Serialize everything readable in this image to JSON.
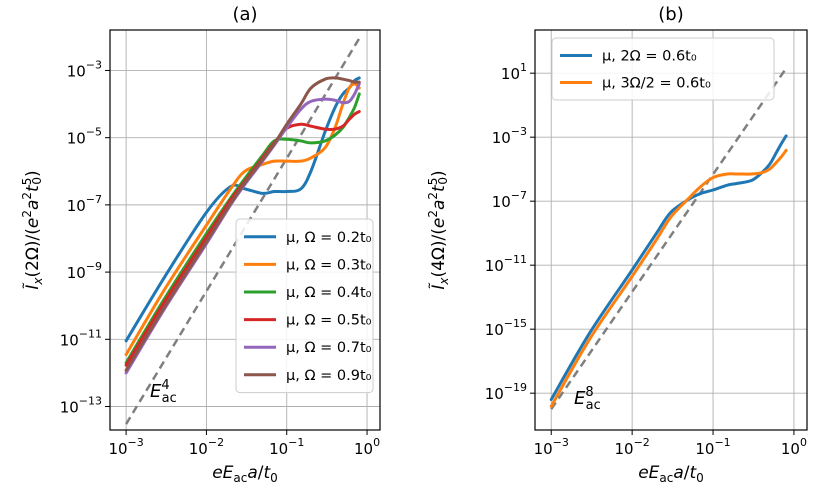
{
  "chart_data": [
    {
      "type": "line",
      "title": "(a)",
      "xlabel": "eE_ac a/t_0",
      "ylabel": "Ĩ_x(2Ω)/(e²a²t_0⁵)",
      "x_scale": "log",
      "y_scale": "log",
      "xlim": [
        0.00063,
        1.45
      ],
      "ylim": [
        2e-14,
        0.016
      ],
      "grid": true,
      "legend_placement": "lower-right",
      "x_ticks": [
        {
          "value": 0.001,
          "base": "10",
          "exp": "−3"
        },
        {
          "value": 0.01,
          "base": "10",
          "exp": "−2"
        },
        {
          "value": 0.1,
          "base": "10",
          "exp": "−1"
        },
        {
          "value": 1,
          "base": "10",
          "exp": "0"
        }
      ],
      "y_ticks": [
        {
          "value": 1e-13,
          "base": "10",
          "exp": "−13"
        },
        {
          "value": 1e-11,
          "base": "10",
          "exp": "−11"
        },
        {
          "value": 1e-09,
          "base": "10",
          "exp": "−9"
        },
        {
          "value": 1e-07,
          "base": "10",
          "exp": "−7"
        },
        {
          "value": 1e-05,
          "base": "10",
          "exp": "−5"
        },
        {
          "value": 0.001,
          "base": "10",
          "exp": "−3"
        }
      ],
      "annotation": {
        "base": "E",
        "sub": "ac",
        "sup": "4"
      },
      "guide_line": {
        "x": [
          0.001,
          0.8
        ],
        "y": [
          3e-14,
          0.009
        ]
      },
      "series": [
        {
          "name": "μ, Ω = 0.2t₀",
          "color": "#1f77b4",
          "x": [
            0.001,
            0.003,
            0.01,
            0.02,
            0.03,
            0.05,
            0.07,
            0.1,
            0.15,
            0.2,
            0.3,
            0.4,
            0.5,
            0.6,
            0.7,
            0.8
          ],
          "y": [
            9e-12,
            7e-10,
            6e-08,
            3.5e-07,
            3e-07,
            2.2e-07,
            2.5e-07,
            2.5e-07,
            3e-07,
            1e-06,
            1.5e-05,
            8e-05,
            0.0002,
            0.0003,
            0.0005,
            0.0006
          ]
        },
        {
          "name": "μ, Ω = 0.3t₀",
          "color": "#ff7f0e",
          "x": [
            0.001,
            0.003,
            0.01,
            0.02,
            0.03,
            0.05,
            0.07,
            0.1,
            0.15,
            0.2,
            0.3,
            0.4,
            0.5,
            0.6,
            0.7,
            0.8
          ],
          "y": [
            3.5e-12,
            3e-10,
            2.5e-08,
            3e-07,
            1e-06,
            1.6e-06,
            2e-06,
            2e-06,
            2e-06,
            2.5e-06,
            5e-06,
            2e-05,
            0.0001,
            0.0003,
            0.0004,
            0.0003
          ]
        },
        {
          "name": "μ, Ω = 0.4t₀",
          "color": "#2ca02c",
          "x": [
            0.001,
            0.003,
            0.01,
            0.02,
            0.03,
            0.05,
            0.07,
            0.1,
            0.15,
            0.2,
            0.3,
            0.4,
            0.5,
            0.6,
            0.7,
            0.8
          ],
          "y": [
            2e-12,
            1.6e-10,
            1.4e-08,
            1.6e-07,
            6e-07,
            3e-06,
            8e-06,
            9e-06,
            8e-06,
            7e-06,
            8e-06,
            1.2e-05,
            2e-05,
            4e-05,
            8e-05,
            0.0002
          ]
        },
        {
          "name": "μ, Ω = 0.5t₀",
          "color": "#d62728",
          "x": [
            0.001,
            0.003,
            0.01,
            0.02,
            0.03,
            0.05,
            0.07,
            0.1,
            0.15,
            0.2,
            0.3,
            0.4,
            0.5,
            0.6,
            0.7,
            0.8
          ],
          "y": [
            1.7e-12,
            1.3e-10,
            1.1e-08,
            1.4e-07,
            5e-07,
            2.5e-06,
            7e-06,
            1.9e-05,
            2.5e-05,
            2.2e-05,
            1.8e-05,
            1.8e-05,
            2.2e-05,
            3.5e-05,
            5e-05,
            6e-05
          ]
        },
        {
          "name": "μ, Ω = 0.7t₀",
          "color": "#9467bd",
          "x": [
            0.001,
            0.003,
            0.01,
            0.02,
            0.03,
            0.05,
            0.07,
            0.1,
            0.15,
            0.2,
            0.3,
            0.4,
            0.5,
            0.6,
            0.7,
            0.8
          ],
          "y": [
            1e-12,
            8e-11,
            7e-09,
            1e-07,
            4e-07,
            2e-06,
            6e-06,
            2e-05,
            7e-05,
            0.00012,
            0.00014,
            0.00013,
            0.00011,
            0.00012,
            0.0002,
            0.0004
          ]
        },
        {
          "name": "μ, Ω = 0.9t₀",
          "color": "#8c564b",
          "x": [
            0.001,
            0.003,
            0.01,
            0.02,
            0.03,
            0.05,
            0.07,
            0.1,
            0.15,
            0.2,
            0.3,
            0.4,
            0.5,
            0.6,
            0.7,
            0.8
          ],
          "y": [
            1.2e-12,
            9e-11,
            8e-09,
            1.1e-07,
            4.5e-07,
            2.2e-06,
            6.5e-06,
            2.5e-05,
            0.0001,
            0.0003,
            0.00055,
            0.0006,
            0.00055,
            0.0005,
            0.00045,
            0.00045
          ]
        }
      ]
    },
    {
      "type": "line",
      "title": "(b)",
      "xlabel": "eE_ac a/t_0",
      "ylabel": "Ĩ_x(4Ω)/(e²a²t_0⁵)",
      "x_scale": "log",
      "y_scale": "log",
      "xlim": [
        0.00063,
        1.45
      ],
      "ylim": [
        5e-22,
        5000
      ],
      "grid": true,
      "legend_placement": "upper-left",
      "x_ticks": [
        {
          "value": 0.001,
          "base": "10",
          "exp": "−3"
        },
        {
          "value": 0.01,
          "base": "10",
          "exp": "−2"
        },
        {
          "value": 0.1,
          "base": "10",
          "exp": "−1"
        },
        {
          "value": 1,
          "base": "10",
          "exp": "0"
        }
      ],
      "y_ticks": [
        {
          "value": 1e-19,
          "base": "10",
          "exp": "−19"
        },
        {
          "value": 1e-15,
          "base": "10",
          "exp": "−15"
        },
        {
          "value": 1e-11,
          "base": "10",
          "exp": "−11"
        },
        {
          "value": 1e-07,
          "base": "10",
          "exp": "−7"
        },
        {
          "value": 0.001,
          "base": "10",
          "exp": "−3"
        },
        {
          "value": 10,
          "base": "10",
          "exp": "1"
        }
      ],
      "annotation": {
        "base": "E",
        "sub": "ac",
        "sup": "8"
      },
      "guide_line": {
        "x": [
          0.001,
          0.8
        ],
        "y": [
          1e-20,
          20
        ]
      },
      "series": [
        {
          "name": "μ, 2Ω = 0.6t₀",
          "color": "#1f77b4",
          "x": [
            0.001,
            0.003,
            0.01,
            0.02,
            0.03,
            0.05,
            0.07,
            0.1,
            0.15,
            0.2,
            0.3,
            0.4,
            0.5,
            0.6,
            0.7,
            0.8
          ],
          "y": [
            4e-20,
            6e-16,
            5e-12,
            1e-09,
            2e-08,
            1.3e-07,
            3e-07,
            5e-07,
            1e-06,
            1.3e-06,
            2e-06,
            6e-06,
            2e-05,
            0.0001,
            0.0004,
            0.0012
          ]
        },
        {
          "name": "μ, 3Ω/2 = 0.6t₀",
          "color": "#ff7f0e",
          "x": [
            0.001,
            0.003,
            0.01,
            0.02,
            0.03,
            0.05,
            0.07,
            0.1,
            0.15,
            0.2,
            0.3,
            0.4,
            0.5,
            0.6,
            0.7,
            0.8
          ],
          "y": [
            1.5e-20,
            2.5e-16,
            2e-12,
            4e-10,
            1e-08,
            1.5e-07,
            8e-07,
            3e-06,
            5e-06,
            5e-06,
            5e-06,
            6e-06,
            1e-05,
            2.5e-05,
            6e-05,
            0.00015
          ]
        }
      ]
    }
  ]
}
